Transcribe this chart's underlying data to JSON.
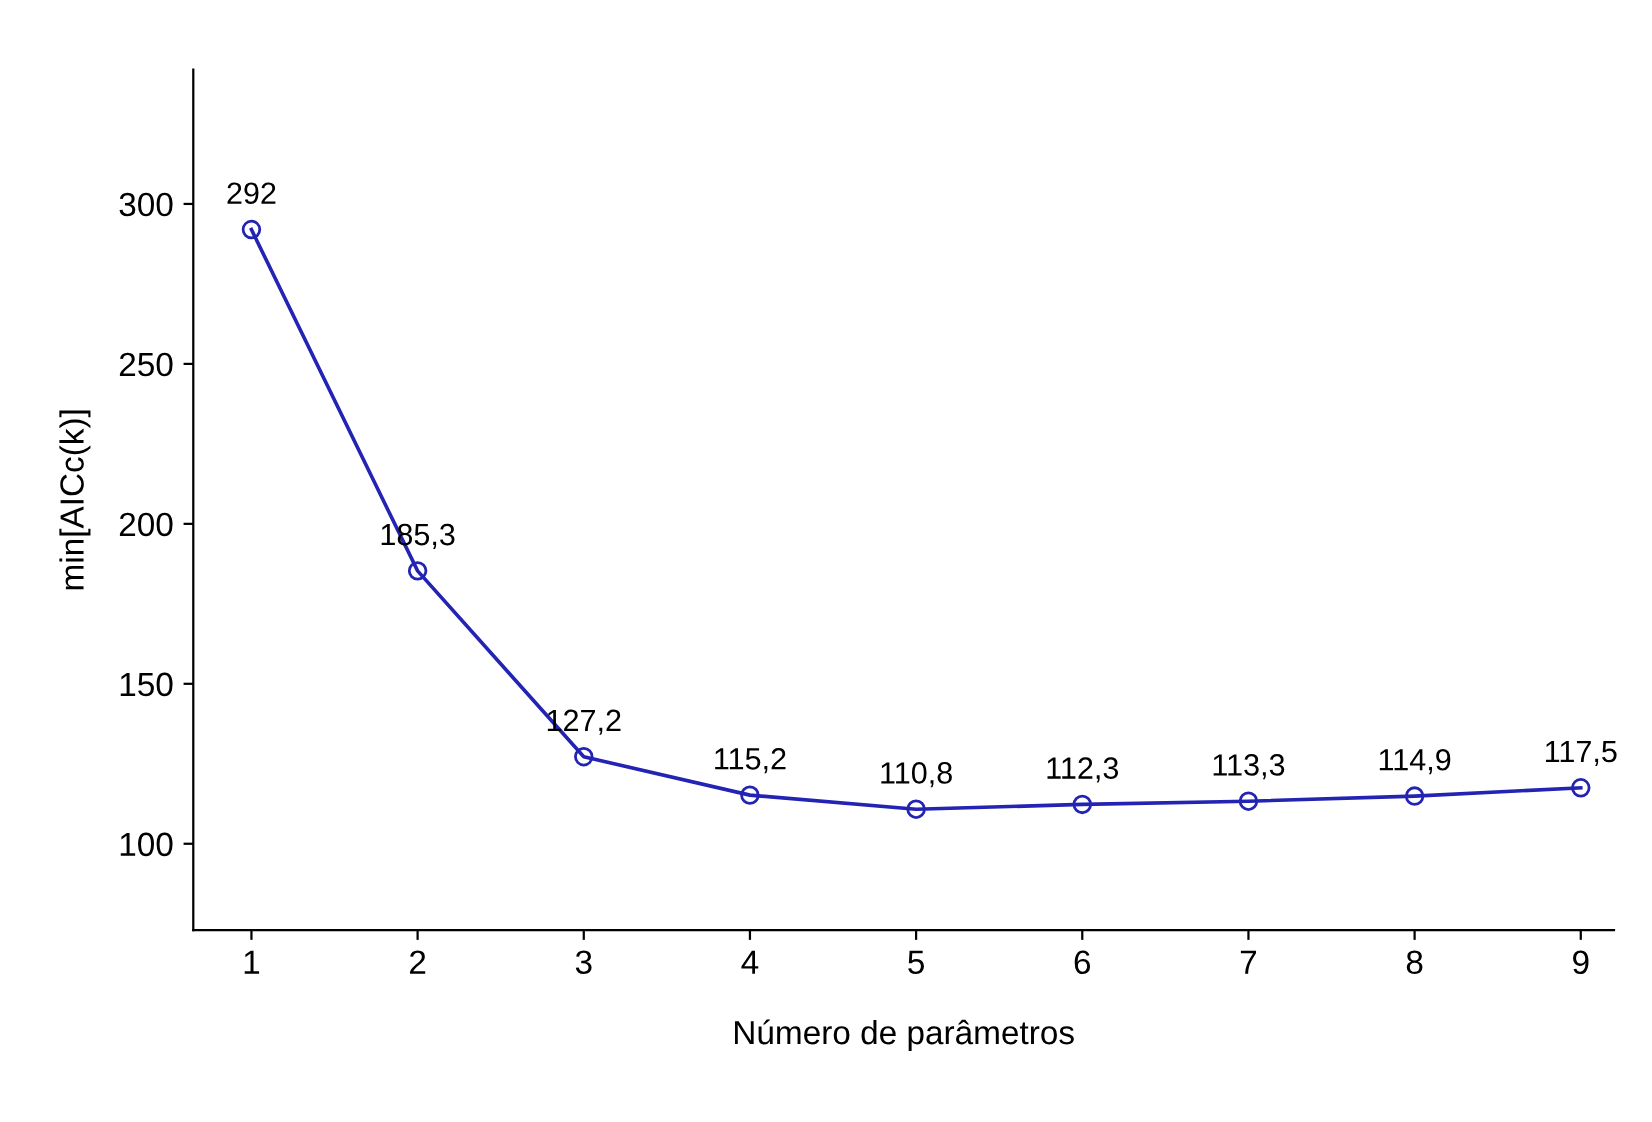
{
  "chart_data": {
    "type": "line",
    "xlabel": "Número de parâmetros",
    "ylabel": "min[AICc(k)]",
    "x": [
      1,
      2,
      3,
      4,
      5,
      6,
      7,
      8,
      9
    ],
    "series": [
      {
        "color": "#2323b4",
        "values": [
          292,
          185.3,
          127.2,
          115.2,
          110.8,
          112.3,
          113.3,
          114.9,
          117.5
        ],
        "value_labels": [
          "292",
          "185,3",
          "127,2",
          "115,2",
          "110,8",
          "112,3",
          "113,3",
          "114,9",
          "117,5"
        ]
      }
    ],
    "marker": "circle",
    "line_style": "solid",
    "grid": false,
    "legend": false,
    "xlim": [
      0.65,
      9.2
    ],
    "ylim": [
      73,
      342
    ],
    "xticks": [
      1,
      2,
      3,
      4,
      5,
      6,
      7,
      8,
      9
    ],
    "yticks": [
      100,
      150,
      200,
      250,
      300
    ]
  }
}
